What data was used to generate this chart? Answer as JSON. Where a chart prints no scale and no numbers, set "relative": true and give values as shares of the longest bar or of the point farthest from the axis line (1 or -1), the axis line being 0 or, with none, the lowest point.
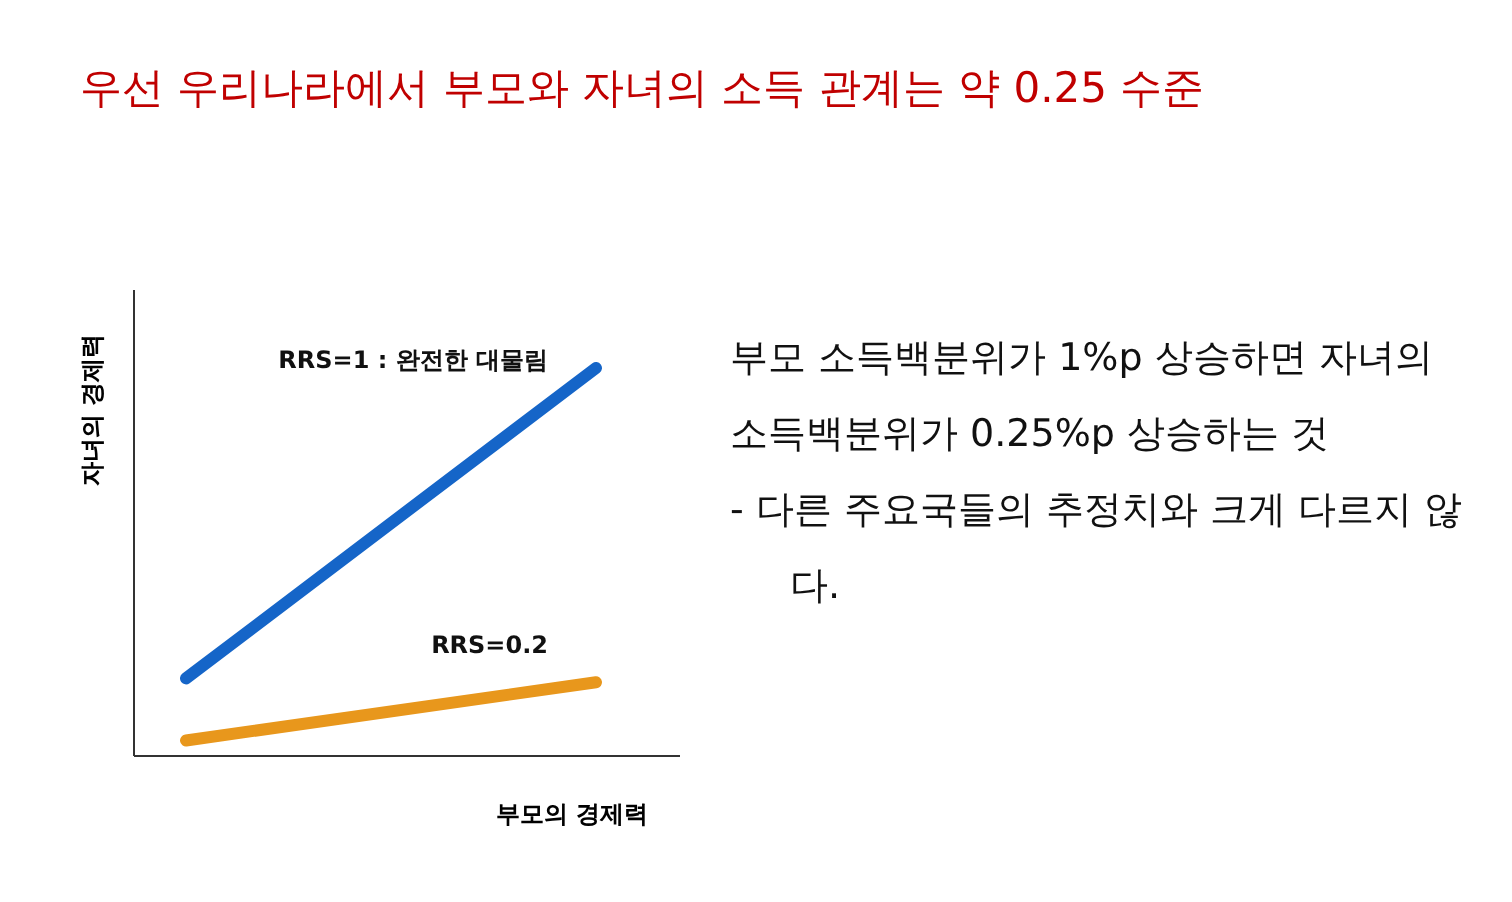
{
  "chart_data": {
    "type": "line",
    "relative": true,
    "title": "우선 우리나라에서 부모와 자녀의 소득 관계는 약 0.25 수준",
    "xlabel": "부모의 경제력",
    "ylabel": "자녀의 경제력",
    "categories": [
      null,
      null
    ],
    "series": [
      {
        "name": "RRS=1 : 완전한 대물림",
        "color": "#1565c8",
        "values": [
          0.2,
          1
        ]
      },
      {
        "name": "RRS=0.2",
        "color": "#e8971c",
        "values": [
          0.04,
          0.19
        ]
      }
    ],
    "annotations": [
      "부모 소득백분위가 1%p 상승하면 자녀의 소득백분위가 0.25%p 상승하는 것",
      "- 다른 주요국들의 추정치와 크게 다르지 않다."
    ]
  }
}
